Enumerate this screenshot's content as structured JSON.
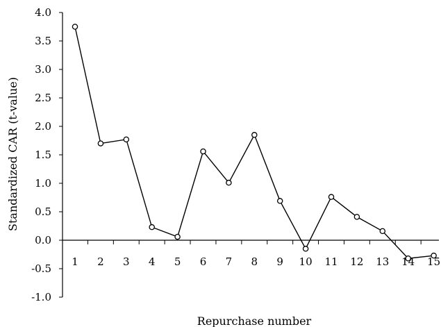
{
  "chart_data": {
    "type": "line",
    "xlabel": "Repurchase number",
    "ylabel": "Standardized CAR (t-value)",
    "ylim": [
      -1.0,
      4.0
    ],
    "yticks": [
      "4.0",
      "3.5",
      "3.0",
      "2.5",
      "2.0",
      "1.5",
      "1.0",
      "0.5",
      "0.0",
      "-0.5",
      "-1.0"
    ],
    "ytick_values": [
      4.0,
      3.5,
      3.0,
      2.5,
      2.0,
      1.5,
      1.0,
      0.5,
      0.0,
      -0.5,
      -1.0
    ],
    "categories": [
      "1",
      "2",
      "3",
      "4",
      "5",
      "6",
      "7",
      "8",
      "9",
      "10",
      "11",
      "12",
      "13",
      "14",
      "15"
    ],
    "series": [
      {
        "values": [
          3.75,
          1.7,
          1.77,
          0.23,
          0.06,
          1.56,
          1.01,
          1.85,
          0.69,
          -0.15,
          0.76,
          0.41,
          0.16,
          -0.32,
          -0.27
        ],
        "color": "#000000",
        "marker": "open-circle"
      }
    ],
    "grid": false,
    "legend": "none"
  }
}
